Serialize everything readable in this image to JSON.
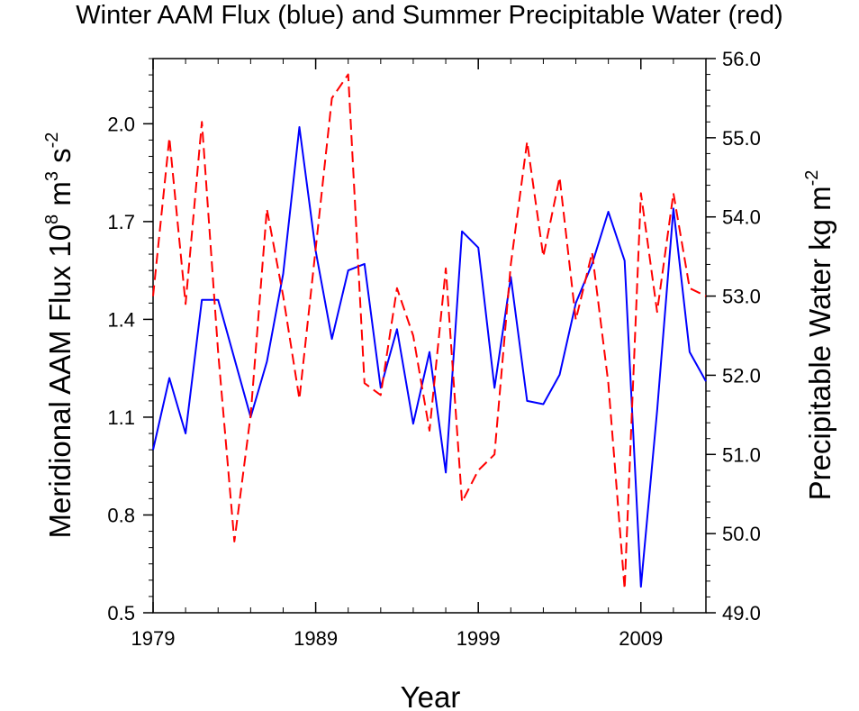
{
  "chart_data": {
    "type": "line",
    "title": "Winter AAM Flux (blue) and Summer Precipitable Water (red)",
    "xlabel": "Year",
    "ylabel_left": {
      "base": "Meridional AAM Flux 10",
      "e1": "8",
      "mid": " m",
      "e2": "3",
      "mid2": " s",
      "e3": "-2"
    },
    "ylabel_right": {
      "base": "Precipitable Water kg m",
      "e1": "-2"
    },
    "xlim": [
      1979,
      2013
    ],
    "ylim_left": [
      0.5,
      2.2
    ],
    "ylim_right": [
      49.0,
      56.0
    ],
    "x_ticks": [
      1979,
      1989,
      1999,
      2009
    ],
    "y_ticks_left": [
      "0.5",
      "0.8",
      "1.1",
      "1.4",
      "1.7",
      "2.0"
    ],
    "y_ticks_right": [
      "49.0",
      "50.0",
      "51.0",
      "52.0",
      "53.0",
      "54.0",
      "55.0",
      "56.0"
    ],
    "x": [
      1979,
      1980,
      1981,
      1982,
      1983,
      1984,
      1985,
      1986,
      1987,
      1988,
      1989,
      1990,
      1991,
      1992,
      1993,
      1994,
      1995,
      1996,
      1997,
      1998,
      1999,
      2000,
      2001,
      2002,
      2003,
      2004,
      2005,
      2006,
      2007,
      2008,
      2009,
      2010,
      2011,
      2012,
      2013
    ],
    "series": [
      {
        "axis": "left",
        "color": "#0000ff",
        "dash": "solid",
        "values": [
          1.0,
          1.22,
          1.05,
          1.46,
          1.46,
          1.28,
          1.1,
          1.27,
          1.54,
          1.99,
          1.61,
          1.34,
          1.55,
          1.57,
          1.19,
          1.37,
          1.08,
          1.3,
          0.93,
          1.67,
          1.62,
          1.19,
          1.53,
          1.15,
          1.14,
          1.23,
          1.45,
          1.57,
          1.73,
          1.58,
          0.58,
          1.12,
          1.74,
          1.3,
          1.21
        ]
      },
      {
        "axis": "right",
        "color": "#ff0000",
        "dash": "dashed",
        "values": [
          53.0,
          55.0,
          52.9,
          55.2,
          52.3,
          49.9,
          51.5,
          54.1,
          53.0,
          51.7,
          53.6,
          55.5,
          55.8,
          51.9,
          51.75,
          53.1,
          52.5,
          51.3,
          53.35,
          50.4,
          50.8,
          51.0,
          53.4,
          54.95,
          53.5,
          54.5,
          52.7,
          53.55,
          51.9,
          49.3,
          54.3,
          52.8,
          54.3,
          53.1,
          53.0
        ]
      }
    ]
  }
}
